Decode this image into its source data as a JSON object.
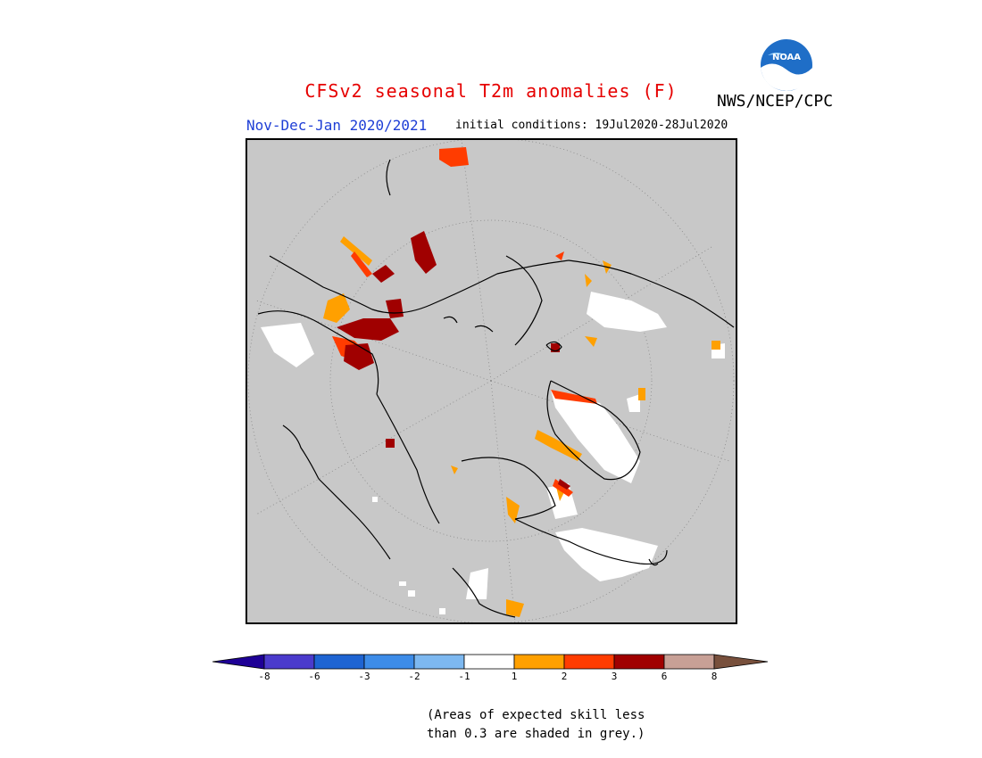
{
  "header": {
    "title": "CFSv2 seasonal T2m anomalies (F)",
    "org": "NWS/NCEP/CPC",
    "period": "Nov-Dec-Jan 2020/2021",
    "initial_conditions": "initial conditions: 19Jul2020-28Jul2020",
    "logo_text": "NOAA"
  },
  "colorbar": {
    "labels": [
      "-8",
      "-6",
      "-3",
      "-2",
      "-1",
      "1",
      "2",
      "3",
      "6",
      "8"
    ],
    "colors": [
      "#1e0096",
      "#4b3bcc",
      "#1e64d2",
      "#3d8ce8",
      "#7db8f0",
      "#ffffff",
      "#ffa000",
      "#ff3c00",
      "#a00000",
      "#c8a096",
      "#78503c"
    ]
  },
  "note": {
    "line1": "(Areas of expected skill less",
    "line2": "than 0.3 are shaded in grey.)"
  },
  "map": {
    "background": "#c8c8c8",
    "projection": "north polar stereographic"
  }
}
